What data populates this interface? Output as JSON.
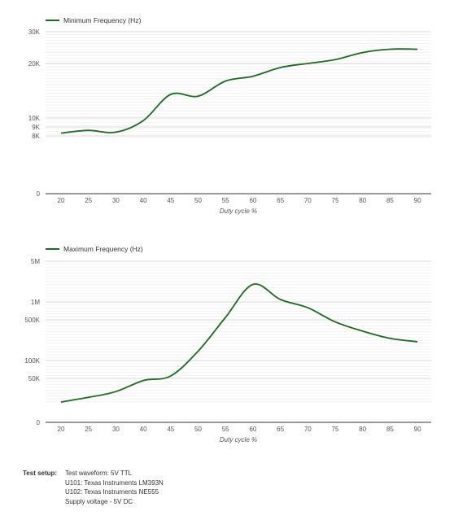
{
  "chart_data": [
    {
      "type": "line",
      "xlabel": "Duty cycle %",
      "ylabel": "",
      "y_scale": "log",
      "ylim": [
        0,
        30000
      ],
      "grid": true,
      "legend_position": "top-left",
      "color": "#1e6a1e",
      "x_ticks": [
        "20",
        "25",
        "30",
        "40",
        "45",
        "50",
        "55",
        "60",
        "65",
        "70",
        "75",
        "80",
        "85",
        "90"
      ],
      "y_ticks": [
        {
          "value": 30000,
          "label": "30K"
        },
        {
          "value": 20000,
          "label": "20K"
        },
        {
          "value": 10000,
          "label": "10K"
        },
        {
          "value": 9000,
          "label": "9K"
        },
        {
          "value": 8000,
          "label": "8K"
        },
        {
          "value": 0,
          "label": "0"
        }
      ],
      "series": [
        {
          "name": "Minimum Frequency (Hz)",
          "x": [
            "20",
            "25",
            "30",
            "40",
            "45",
            "50",
            "55",
            "60",
            "65",
            "70",
            "75",
            "80",
            "85",
            "90"
          ],
          "values": [
            8300,
            8600,
            8400,
            9700,
            13500,
            13200,
            16000,
            17000,
            19000,
            20000,
            21000,
            23000,
            24000,
            24000
          ]
        }
      ]
    },
    {
      "type": "line",
      "xlabel": "Duty cycle %",
      "ylabel": "",
      "y_scale": "log",
      "ylim": [
        0,
        5000000
      ],
      "grid": true,
      "legend_position": "top-left",
      "color": "#1e6a1e",
      "x_ticks": [
        "20",
        "25",
        "30",
        "40",
        "45",
        "50",
        "55",
        "60",
        "65",
        "70",
        "75",
        "80",
        "85",
        "90"
      ],
      "y_ticks": [
        {
          "value": 5000000,
          "label": "5M"
        },
        {
          "value": 1000000,
          "label": "1M"
        },
        {
          "value": 500000,
          "label": "500K"
        },
        {
          "value": 100000,
          "label": "100K"
        },
        {
          "value": 50000,
          "label": "50K"
        },
        {
          "value": 0,
          "label": "0"
        }
      ],
      "series": [
        {
          "name": "Maximum Frequency (Hz)",
          "x": [
            "20",
            "25",
            "30",
            "40",
            "45",
            "50",
            "55",
            "60",
            "65",
            "70",
            "75",
            "80",
            "85",
            "90"
          ],
          "values": [
            20000,
            24000,
            30000,
            46000,
            55000,
            145000,
            550000,
            2000000,
            1100000,
            800000,
            460000,
            320000,
            240000,
            210000
          ]
        }
      ]
    }
  ],
  "test_setup": {
    "label": "Test setup:",
    "lines": [
      "Test waveform: 5V TTL",
      "U101: Texas Instruments LM393N",
      "U102: Texas Instruments NE555",
      "Supply voltage - 5V DC"
    ]
  }
}
